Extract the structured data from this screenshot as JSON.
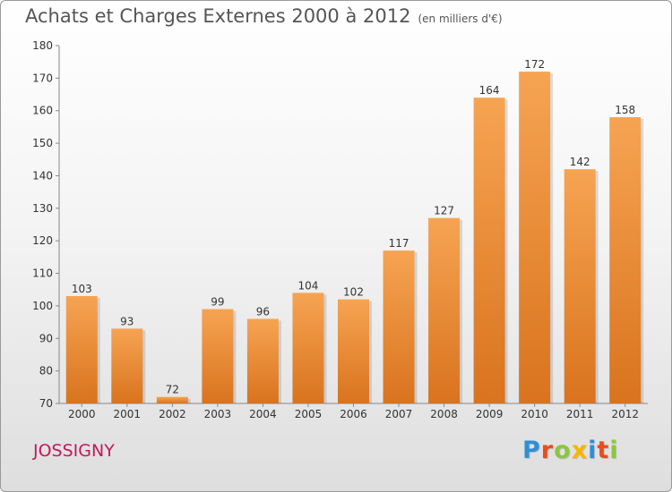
{
  "title": "Achats et Charges Externes 2000 à 2012",
  "unit": "(en milliers d'€)",
  "commune": "JOSSIGNY",
  "logo": {
    "text": "Proxiti",
    "colors": [
      "#2e8fd6",
      "#e94e1b",
      "#8cc63f",
      "#f7b500",
      "#2e8fd6",
      "#e94e1b",
      "#8cc63f"
    ]
  },
  "colors": {
    "bar_top": "#f6a452",
    "bar_bottom": "#d9731e",
    "commune": "#c2185b"
  },
  "chart_data": {
    "type": "bar",
    "categories": [
      "2000",
      "2001",
      "2002",
      "2003",
      "2004",
      "2005",
      "2006",
      "2007",
      "2008",
      "2009",
      "2010",
      "2011",
      "2012"
    ],
    "values": [
      103,
      93,
      72,
      99,
      96,
      104,
      102,
      117,
      127,
      164,
      172,
      142,
      158
    ],
    "ylim": [
      70,
      180
    ],
    "yticks": [
      70,
      80,
      90,
      100,
      110,
      120,
      130,
      140,
      150,
      160,
      170,
      180
    ],
    "grid": false,
    "xlabel": "",
    "ylabel": ""
  }
}
